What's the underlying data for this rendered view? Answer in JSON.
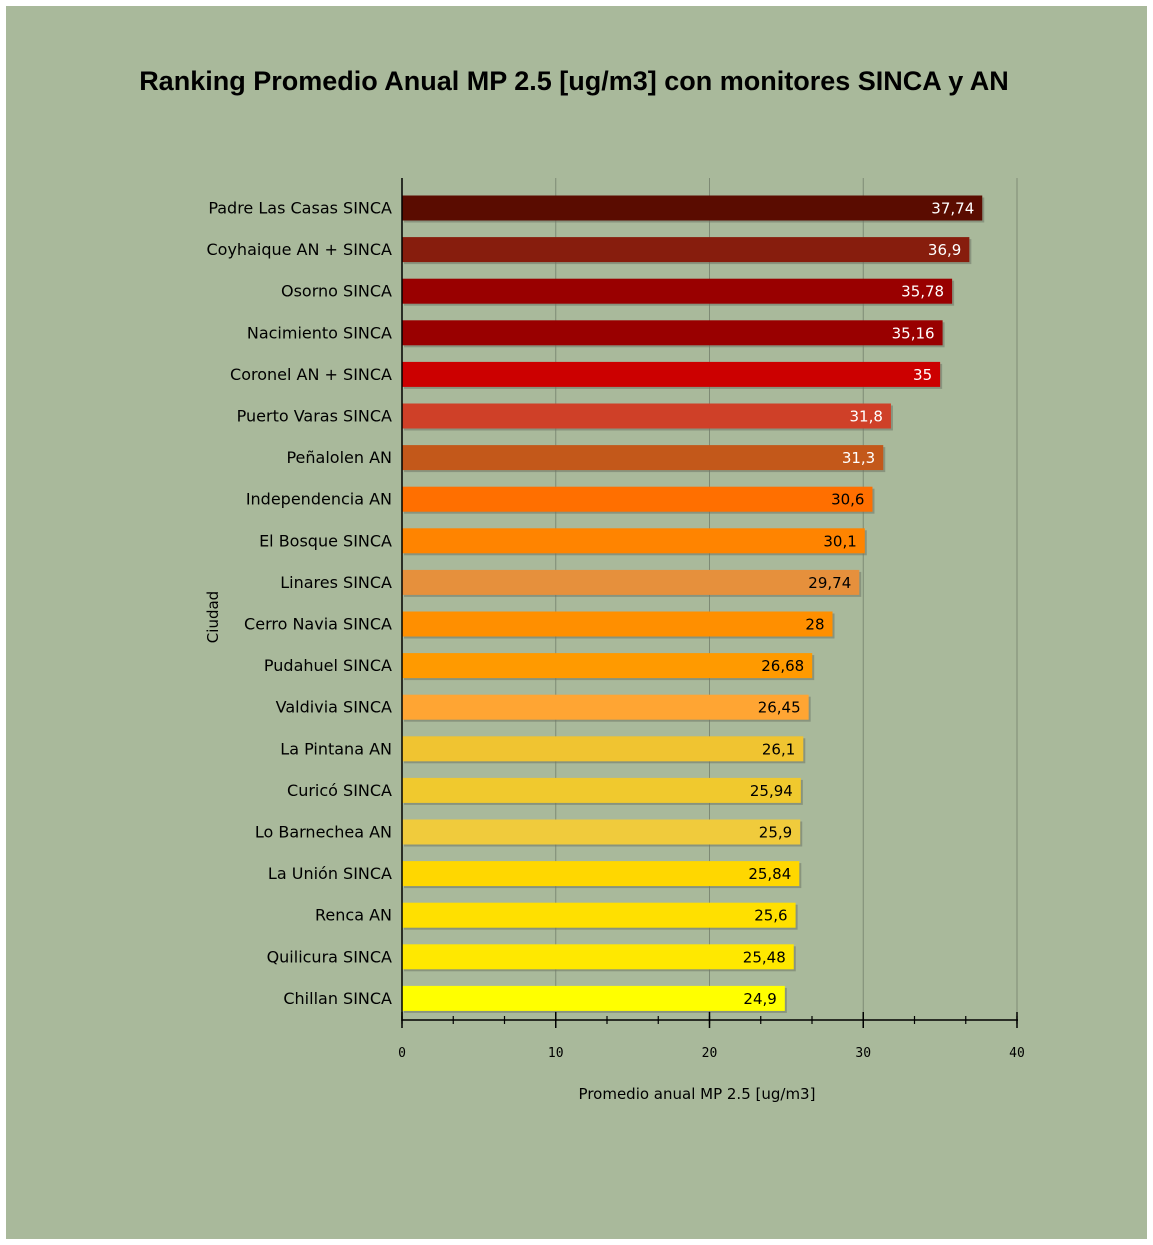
{
  "chart_data": {
    "type": "bar",
    "orientation": "horizontal",
    "title": "Ranking Promedio Anual MP 2.5 [ug/m3] con monitores SINCA y AN",
    "xlabel": "Promedio anual MP 2.5 [ug/m3]",
    "ylabel": "Ciudad",
    "xlim": [
      0,
      40
    ],
    "x_ticks": [
      "0",
      "10",
      "20",
      "30",
      "40"
    ],
    "grid": "vertical",
    "background": "#a9b99b",
    "categories": [
      "Padre Las Casas SINCA",
      "Coyhaique AN + SINCA",
      "Osorno SINCA",
      "Nacimiento SINCA",
      "Coronel AN + SINCA",
      "Puerto Varas SINCA",
      "Peñalolen AN",
      "Independencia AN",
      "El Bosque SINCA",
      "Linares SINCA",
      "Cerro Navia SINCA",
      "Pudahuel SINCA",
      "Valdivia SINCA",
      "La Pintana AN",
      "Curicó SINCA",
      "Lo Barnechea AN",
      "La Unión SINCA",
      "Renca AN",
      "Quilicura SINCA",
      "Chillan SINCA"
    ],
    "values": [
      37.74,
      36.9,
      35.78,
      35.16,
      35,
      31.8,
      31.3,
      30.6,
      30.1,
      29.74,
      28,
      26.68,
      26.45,
      26.1,
      25.94,
      25.9,
      25.84,
      25.6,
      25.48,
      24.9
    ],
    "value_labels": [
      "37,74",
      "36,9",
      "35,78",
      "35,16",
      "35",
      "31,8",
      "31,3",
      "30,6",
      "30,1",
      "29,74",
      "28",
      "26,68",
      "26,45",
      "26,1",
      "25,94",
      "25,9",
      "25,84",
      "25,6",
      "25,48",
      "24,9"
    ],
    "bar_colors": [
      "#5a0c00",
      "#871d0d",
      "#990000",
      "#990000",
      "#cc0000",
      "#cf4028",
      "#c3581a",
      "#ff6f00",
      "#ff8400",
      "#e6903c",
      "#ff8f00",
      "#ff9a00",
      "#ffa533",
      "#f0c431",
      "#f0c92e",
      "#f0cb3c",
      "#ffd700",
      "#ffe000",
      "#ffe800",
      "#ffff00"
    ],
    "label_colors": [
      "#ffffff",
      "#ffffff",
      "#ffffff",
      "#ffffff",
      "#ffffff",
      "#ffffff",
      "#ffffff",
      "#000000",
      "#000000",
      "#000000",
      "#000000",
      "#000000",
      "#000000",
      "#000000",
      "#000000",
      "#000000",
      "#000000",
      "#000000",
      "#000000",
      "#000000"
    ]
  }
}
